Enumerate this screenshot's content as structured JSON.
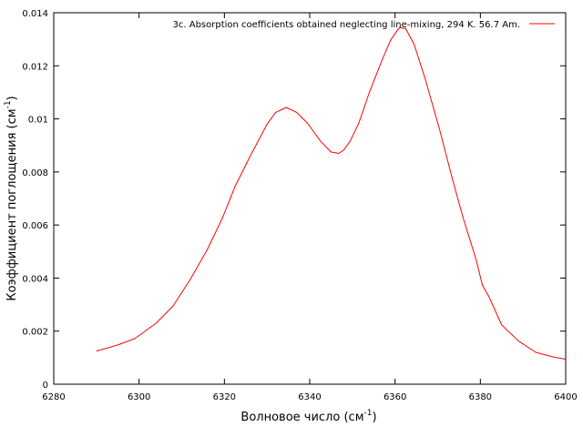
{
  "chart_data": {
    "type": "line",
    "title": "",
    "xlabel": "Волновое число (см",
    "xlabel_sup": "-1",
    "xlabel_end": ")",
    "ylabel": "Коэффициент поглощения (см",
    "ylabel_sup": "-1",
    "ylabel_end": ")",
    "xlim": [
      6280,
      6400
    ],
    "ylim": [
      0,
      0.014
    ],
    "x_ticks": [
      6280,
      6300,
      6320,
      6340,
      6360,
      6380,
      6400
    ],
    "x_tick_labels": [
      "6280",
      "6300",
      "6320",
      "6340",
      "6360",
      "6380",
      "6400"
    ],
    "y_ticks": [
      0,
      0.002,
      0.004,
      0.006,
      0.008,
      0.01,
      0.012,
      0.014
    ],
    "y_tick_labels": [
      "0",
      "0.002",
      "0.004",
      "0.006",
      "0.008",
      "0.01",
      "0.012",
      "0.014"
    ],
    "grid": false,
    "legend_position": "top-right",
    "series": [
      {
        "name": "3c. Absorption coefficients obtained neglecting line-mixing, 294 K. 56.7 Am.",
        "color": "#ff0000",
        "x": [
          6290,
          6295,
          6299,
          6304,
          6308,
          6312,
          6316,
          6319.5,
          6322.5,
          6326,
          6330,
          6332,
          6334.5,
          6337,
          6339.5,
          6342.5,
          6345,
          6346.8,
          6348,
          6349.5,
          6351.5,
          6354,
          6357,
          6359,
          6361,
          6362.5,
          6364.5,
          6367,
          6370.5,
          6373.5,
          6376,
          6379,
          6380.5,
          6382,
          6385,
          6389,
          6393,
          6397,
          6400
        ],
        "y": [
          0.00125,
          0.00148,
          0.00172,
          0.0023,
          0.00295,
          0.00395,
          0.00508,
          0.00625,
          0.00745,
          0.00858,
          0.0098,
          0.01024,
          0.01043,
          0.01024,
          0.00983,
          0.00917,
          0.00875,
          0.0087,
          0.00883,
          0.00917,
          0.00984,
          0.01101,
          0.01223,
          0.01298,
          0.01344,
          0.0134,
          0.0128,
          0.01155,
          0.00957,
          0.0077,
          0.00625,
          0.0047,
          0.00372,
          0.0033,
          0.00223,
          0.00162,
          0.0012,
          0.00103,
          0.00094
        ]
      }
    ]
  }
}
